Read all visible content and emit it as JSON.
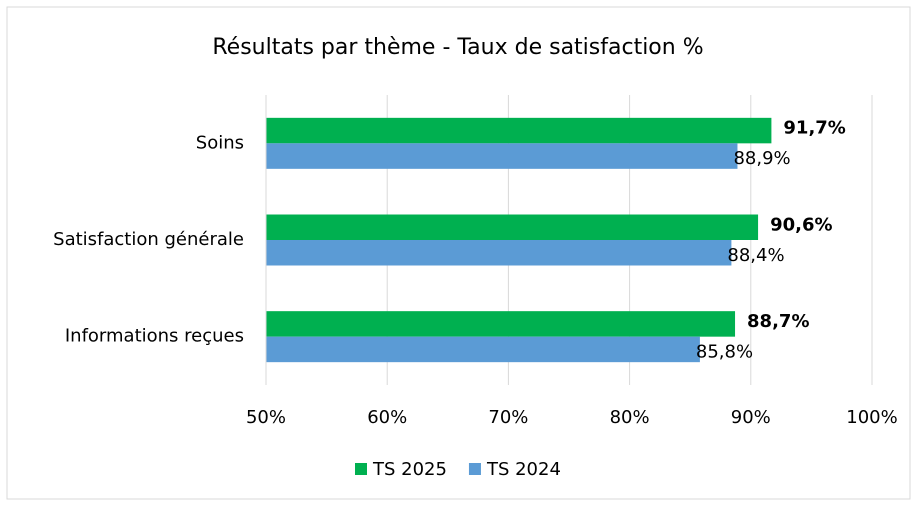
{
  "chart_data": {
    "type": "hbar",
    "title": "Résultats par thème - Taux de satisfaction %",
    "categories": [
      "Soins",
      "Satisfaction générale",
      "Informations reçues"
    ],
    "series": [
      {
        "name": "TS 2025",
        "color": "#00b050",
        "values": [
          91.7,
          90.6,
          88.7
        ],
        "value_labels": [
          "91,7%",
          "90,6%",
          "88,7%"
        ]
      },
      {
        "name": "TS 2024",
        "color": "#5b9bd5",
        "values": [
          88.9,
          88.4,
          85.8
        ],
        "value_labels": [
          "88,9%",
          "88,4%",
          "85,8%"
        ]
      }
    ],
    "xlim": [
      50,
      100
    ],
    "xticks": [
      {
        "value": 50,
        "label": "50%"
      },
      {
        "value": 60,
        "label": "60%"
      },
      {
        "value": 70,
        "label": "70%"
      },
      {
        "value": 80,
        "label": "80%"
      },
      {
        "value": 90,
        "label": "90%"
      },
      {
        "value": 100,
        "label": "100%"
      }
    ],
    "grid": true,
    "legend": "bottom"
  }
}
